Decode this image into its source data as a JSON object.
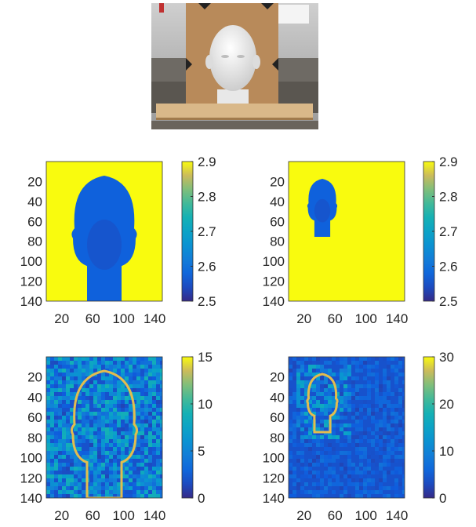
{
  "photo": {
    "icon": "mannequin-head-photo"
  },
  "chart_data": [
    {
      "type": "heatmap",
      "content": "mannequin head silhouette, full-size",
      "xticks": [
        "20",
        "60",
        "100",
        "140"
      ],
      "yticks": [
        "20",
        "40",
        "60",
        "80",
        "100",
        "120",
        "140"
      ],
      "xlim": [
        0,
        150
      ],
      "ylim": [
        0,
        140
      ],
      "colorbar": {
        "range": [
          2.5,
          2.9
        ],
        "ticks": [
          "2.9",
          "2.8",
          "2.7",
          "2.6",
          "2.5"
        ]
      },
      "colormap": "parula",
      "background_value": 2.9,
      "object_value": 2.57
    },
    {
      "type": "heatmap",
      "content": "mannequin head silhouette, small, upper-left",
      "xticks": [
        "20",
        "60",
        "100",
        "140"
      ],
      "yticks": [
        "20",
        "40",
        "60",
        "80",
        "100",
        "120",
        "140"
      ],
      "xlim": [
        0,
        150
      ],
      "ylim": [
        0,
        140
      ],
      "colorbar": {
        "range": [
          2.5,
          2.9
        ],
        "ticks": [
          "2.9",
          "2.8",
          "2.7",
          "2.6",
          "2.5"
        ]
      },
      "colormap": "parula",
      "background_value": 2.9,
      "object_value": 2.57
    },
    {
      "type": "heatmap",
      "content": "noisy map with bright head outline, full-size",
      "xticks": [
        "20",
        "60",
        "100",
        "140"
      ],
      "yticks": [
        "20",
        "40",
        "60",
        "80",
        "100",
        "120",
        "140"
      ],
      "xlim": [
        0,
        150
      ],
      "ylim": [
        0,
        140
      ],
      "colorbar": {
        "range": [
          0,
          15
        ],
        "ticks": [
          "15",
          "10",
          "5",
          "0"
        ]
      },
      "colormap": "parula",
      "noise_level": 4,
      "outline_value": 14
    },
    {
      "type": "heatmap",
      "content": "noisy map with bright head outline, small, upper-left",
      "xticks": [
        "20",
        "60",
        "100",
        "140"
      ],
      "yticks": [
        "20",
        "40",
        "60",
        "80",
        "100",
        "120",
        "140"
      ],
      "xlim": [
        0,
        150
      ],
      "ylim": [
        0,
        140
      ],
      "colorbar": {
        "range": [
          0,
          30
        ],
        "ticks": [
          "30",
          "20",
          "10",
          "0"
        ]
      },
      "colormap": "parula",
      "noise_level": 4,
      "outline_value": 28
    }
  ]
}
